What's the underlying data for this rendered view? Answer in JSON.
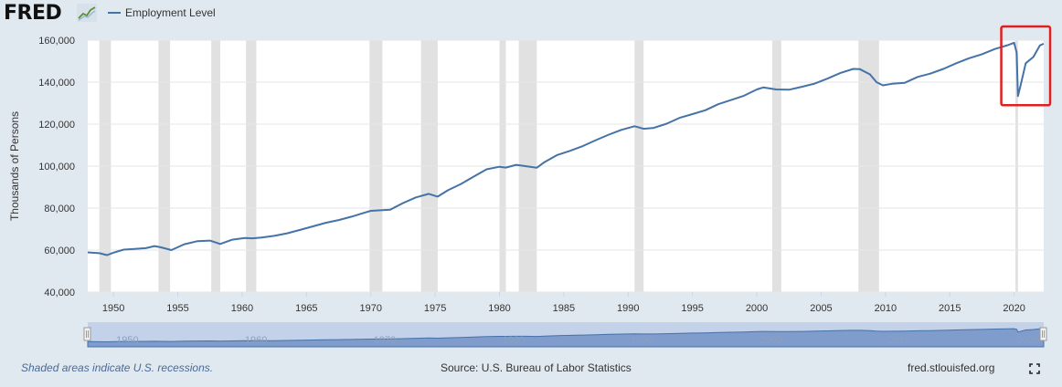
{
  "header": {
    "logo_text": "FRED",
    "logo_icon": "fred-chart-icon",
    "legend_label": "Employment Level"
  },
  "chart_data": {
    "type": "line",
    "title": "",
    "xlabel": "",
    "ylabel": "Thousands of Persons",
    "xlim": [
      1948,
      2022.3
    ],
    "ylim": [
      40000,
      160000
    ],
    "yticks": [
      40000,
      60000,
      80000,
      100000,
      120000,
      140000,
      160000
    ],
    "ytick_labels": [
      "40,000",
      "60,000",
      "80,000",
      "100,000",
      "120,000",
      "140,000",
      "160,000"
    ],
    "xticks": [
      1950,
      1955,
      1960,
      1965,
      1970,
      1975,
      1980,
      1985,
      1990,
      1995,
      2000,
      2005,
      2010,
      2015,
      2020
    ],
    "grid": true,
    "series": [
      {
        "name": "Employment Level",
        "color": "#4572a7",
        "x": [
          1948.0,
          1948.9,
          1949.5,
          1950.0,
          1950.8,
          1951.5,
          1952.5,
          1953.2,
          1953.7,
          1954.5,
          1955.5,
          1956.5,
          1957.5,
          1958.3,
          1959.2,
          1960.2,
          1960.8,
          1961.5,
          1962.5,
          1963.5,
          1964.5,
          1965.5,
          1966.5,
          1967.5,
          1968.5,
          1969.5,
          1970.0,
          1970.9,
          1971.5,
          1972.5,
          1973.5,
          1974.5,
          1975.2,
          1976.0,
          1977.0,
          1978.0,
          1979.0,
          1980.0,
          1980.5,
          1981.3,
          1982.0,
          1982.9,
          1983.5,
          1984.5,
          1985.5,
          1986.5,
          1987.5,
          1988.5,
          1989.5,
          1990.5,
          1991.2,
          1992.0,
          1993.0,
          1994.0,
          1995.0,
          1996.0,
          1997.0,
          1998.0,
          1999.0,
          2000.0,
          2000.5,
          2001.5,
          2002.5,
          2003.5,
          2004.5,
          2005.5,
          2006.5,
          2007.5,
          2008.0,
          2008.8,
          2009.3,
          2009.8,
          2010.5,
          2011.5,
          2012.5,
          2013.5,
          2014.5,
          2015.5,
          2016.5,
          2017.5,
          2018.5,
          2019.5,
          2020.0,
          2020.2,
          2020.3,
          2020.5,
          2020.9,
          2021.5,
          2022.0,
          2022.3
        ],
        "values": [
          58900,
          58500,
          57600,
          58800,
          60200,
          60500,
          60900,
          61900,
          61300,
          60000,
          62800,
          64200,
          64500,
          62900,
          64900,
          65800,
          65600,
          66000,
          66800,
          68000,
          69600,
          71300,
          73000,
          74300,
          75900,
          77800,
          78700,
          79000,
          79200,
          82400,
          85100,
          86800,
          85500,
          88500,
          91500,
          95000,
          98500,
          99700,
          99300,
          100600,
          100000,
          99200,
          101900,
          105300,
          107300,
          109600,
          112400,
          115000,
          117300,
          119000,
          117800,
          118200,
          120200,
          123000,
          124800,
          126600,
          129500,
          131500,
          133500,
          136500,
          137500,
          136500,
          136400,
          137800,
          139300,
          141700,
          144400,
          146300,
          146200,
          143700,
          140000,
          138500,
          139200,
          139700,
          142500,
          144100,
          146300,
          149000,
          151400,
          153300,
          155800,
          157600,
          158800,
          154000,
          133400,
          138500,
          149000,
          152000,
          157500,
          158300
        ]
      }
    ],
    "recessions": [
      [
        1948.9,
        1949.8
      ],
      [
        1953.5,
        1954.4
      ],
      [
        1957.6,
        1958.3
      ],
      [
        1960.3,
        1961.1
      ],
      [
        1969.9,
        1970.9
      ],
      [
        1973.9,
        1975.2
      ],
      [
        1980.0,
        1980.5
      ],
      [
        1981.5,
        1982.9
      ],
      [
        1990.5,
        1991.2
      ],
      [
        2001.2,
        2001.9
      ],
      [
        2007.9,
        2009.5
      ],
      [
        2020.1,
        2020.3
      ]
    ],
    "annotations": [
      {
        "type": "highlight-box",
        "color": "#e02020",
        "x_range": [
          2019.0,
          2022.8
        ],
        "y_range": [
          129000,
          166500
        ]
      }
    ]
  },
  "navigator": {
    "labels": [
      "1950",
      "1960",
      "1970",
      "1980",
      "1990",
      "2000",
      "2010",
      "2020"
    ]
  },
  "footer": {
    "recession_note": "Shaded areas indicate U.S. recessions.",
    "source": "Source: U.S. Bureau of Labor Statistics",
    "site": "fred.stlouisfed.org",
    "expand_icon": "fullscreen-icon"
  }
}
